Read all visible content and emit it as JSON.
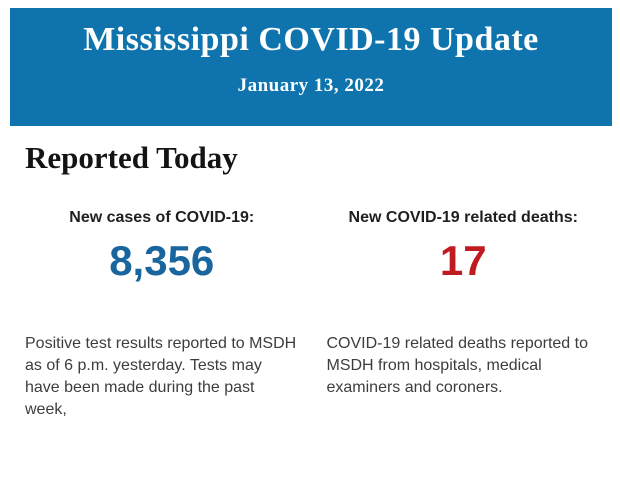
{
  "banner": {
    "title": "Mississippi COVID-19 Update",
    "date": "January 13, 2022",
    "background_color": "#0f74ad",
    "text_color": "#fdfefe"
  },
  "section": {
    "heading": "Reported Today"
  },
  "stats": [
    {
      "label": "New cases of COVID-19:",
      "value": "8,356",
      "value_color": "#19659e",
      "description": "Positive test results reported to MSDH as of 6 p.m. yesterday. Tests may have been made during the past week,"
    },
    {
      "label": "New COVID-19 related deaths:",
      "value": "17",
      "value_color": "#c01b20",
      "description": "COVID-19 related deaths reported to MSDH from hospitals, medical examiners and coroners."
    }
  ]
}
